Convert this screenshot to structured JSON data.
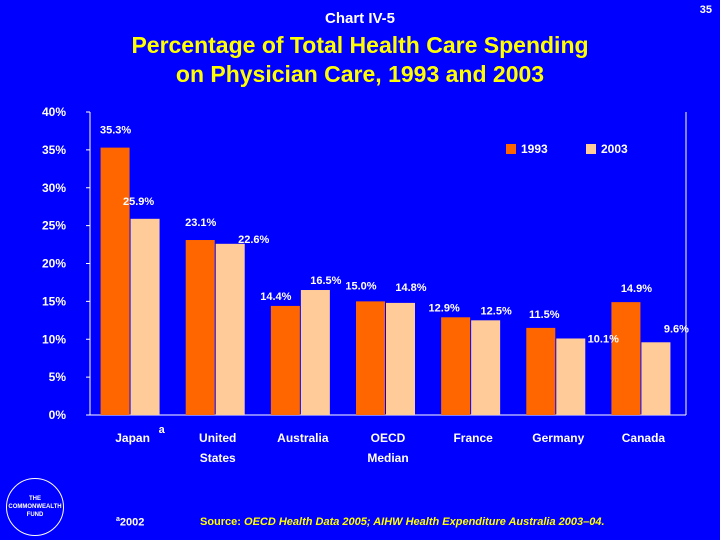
{
  "header": {
    "chart_label": "Chart IV-5",
    "page_number": "35",
    "title_line1": "Percentage of Total Health Care Spending",
    "title_line2": "on Physician Care, 1993 and 2003"
  },
  "colors": {
    "background": "#0000ff",
    "series_1993": "#ff6600",
    "series_2003": "#ffcc99",
    "title": "#ffff00",
    "text": "#ffffff"
  },
  "chart_data": {
    "type": "bar",
    "title": "Percentage of Total Health Care Spending on Physician Care, 1993 and 2003",
    "xlabel": "",
    "ylabel": "",
    "ylim": [
      0,
      40
    ],
    "y_ticks": [
      "0%",
      "5%",
      "10%",
      "15%",
      "20%",
      "25%",
      "30%",
      "35%",
      "40%"
    ],
    "legend_position": "top-right",
    "categories": [
      {
        "line1": "Japan",
        "line2": "",
        "marker": "a"
      },
      {
        "line1": "United",
        "line2": "States",
        "marker": ""
      },
      {
        "line1": "Australia",
        "line2": "",
        "marker": ""
      },
      {
        "line1": "OECD",
        "line2": "Median",
        "marker": ""
      },
      {
        "line1": "France",
        "line2": "",
        "marker": ""
      },
      {
        "line1": "Germany",
        "line2": "",
        "marker": ""
      },
      {
        "line1": "Canada",
        "line2": "",
        "marker": ""
      }
    ],
    "series": [
      {
        "name": "1993",
        "values": [
          35.3,
          23.1,
          14.4,
          15.0,
          12.9,
          11.5,
          14.9
        ],
        "labels": [
          "35.3%",
          "23.1%",
          "14.4%",
          "15.0%",
          "12.9%",
          "11.5%",
          "14.9%"
        ]
      },
      {
        "name": "2003",
        "values": [
          25.9,
          22.6,
          16.5,
          14.8,
          12.5,
          10.1,
          9.6
        ],
        "labels": [
          "25.9%",
          "22.6%",
          "16.5%",
          "14.8%",
          "12.5%",
          "10.1%",
          "9.6%"
        ]
      }
    ]
  },
  "logo": {
    "line1": "THE",
    "line2": "COMMONWEALTH",
    "line3": "FUND"
  },
  "footer": {
    "footnote_marker": "a",
    "footnote_text": "2002",
    "source_label": "Source:",
    "source_text": " OECD Health Data 2005; AIHW Health Expenditure Australia 2003–04."
  }
}
